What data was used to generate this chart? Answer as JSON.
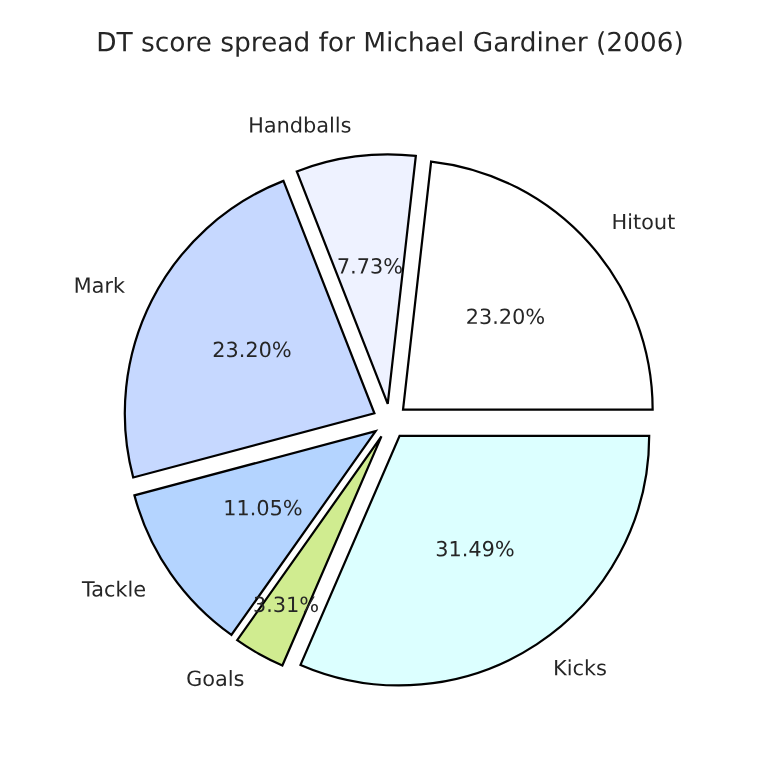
{
  "chart_data": {
    "type": "pie",
    "title": "DT score spread for Michael Gardiner (2006)",
    "categories": [
      "Hitout",
      "Handballs",
      "Mark",
      "Tackle",
      "Goals",
      "Kicks"
    ],
    "values": [
      23.2,
      7.73,
      23.2,
      11.05,
      3.31,
      31.49
    ],
    "value_labels": [
      "23.20%",
      "7.73%",
      "23.20%",
      "11.05%",
      "3.31%",
      "31.49%"
    ],
    "colors": [
      "#ffffff",
      "#eef2ff",
      "#c6d8ff",
      "#b4d4ff",
      "#d0ec90",
      "#dcffff"
    ]
  }
}
